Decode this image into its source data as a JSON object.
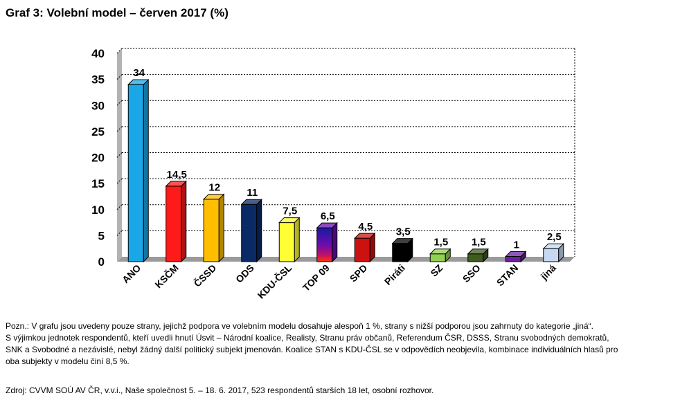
{
  "title": "Graf 3: Volební model – červen 2017 (%)",
  "chart_data": {
    "type": "bar",
    "categories": [
      "ANO",
      "KSČM",
      "ČSSD",
      "ODS",
      "KDU-ČSL",
      "TOP 09",
      "SPD",
      "Piráti",
      "SZ",
      "SSO",
      "STAN",
      "jiná"
    ],
    "values": [
      34,
      14.5,
      12,
      11,
      7.5,
      6.5,
      4.5,
      3.5,
      1.5,
      1.5,
      1,
      2.5
    ],
    "value_labels": [
      "34",
      "14,5",
      "12",
      "11",
      "7,5",
      "6,5",
      "4,5",
      "3,5",
      "1,5",
      "1,5",
      "1",
      "2,5"
    ],
    "colors": [
      "#1aa7e8",
      "#ff1a1a",
      "#ffbf00",
      "#0a2a66",
      "#ffff33",
      "#6a0dad",
      "#cc1111",
      "#000000",
      "#92d050",
      "#3d5c1f",
      "#6a1fa0",
      "#c6d9f1"
    ],
    "y_ticks": [
      "0",
      "5",
      "10",
      "15",
      "20",
      "25",
      "30",
      "35",
      "40"
    ],
    "ylim": [
      0,
      40
    ],
    "y_step": 5,
    "grid": true,
    "xlabel": "",
    "ylabel": ""
  },
  "note_lines": [
    "Pozn.: V grafu jsou uvedeny pouze strany, jejichž podpora ve volebním modelu dosahuje alespoň 1 %, strany s nižší podporou jsou zahrnuty do kategorie „jiná“.",
    "S výjimkou jednotek respondentů, kteří uvedli hnutí Úsvit – Národní koalice, Realisty, Stranu práv občanů, Referendum ČSR, DSSS, Stranu svobodných demokratů,",
    "SNK a Svobodné a nezávislé, nebyl žádný další politický subjekt jmenován. Koalice STAN s KDU-ČSL se v odpovědích neobjevila, kombinace individuálních hlasů pro",
    "oba subjekty v modelu činí 8,5 %."
  ],
  "source": "Zdroj: CVVM SOÚ AV ČR, v.v.i., Naše společnost 5. – 18. 6. 2017, 523 respondentů starších 18 let, osobní rozhovor."
}
